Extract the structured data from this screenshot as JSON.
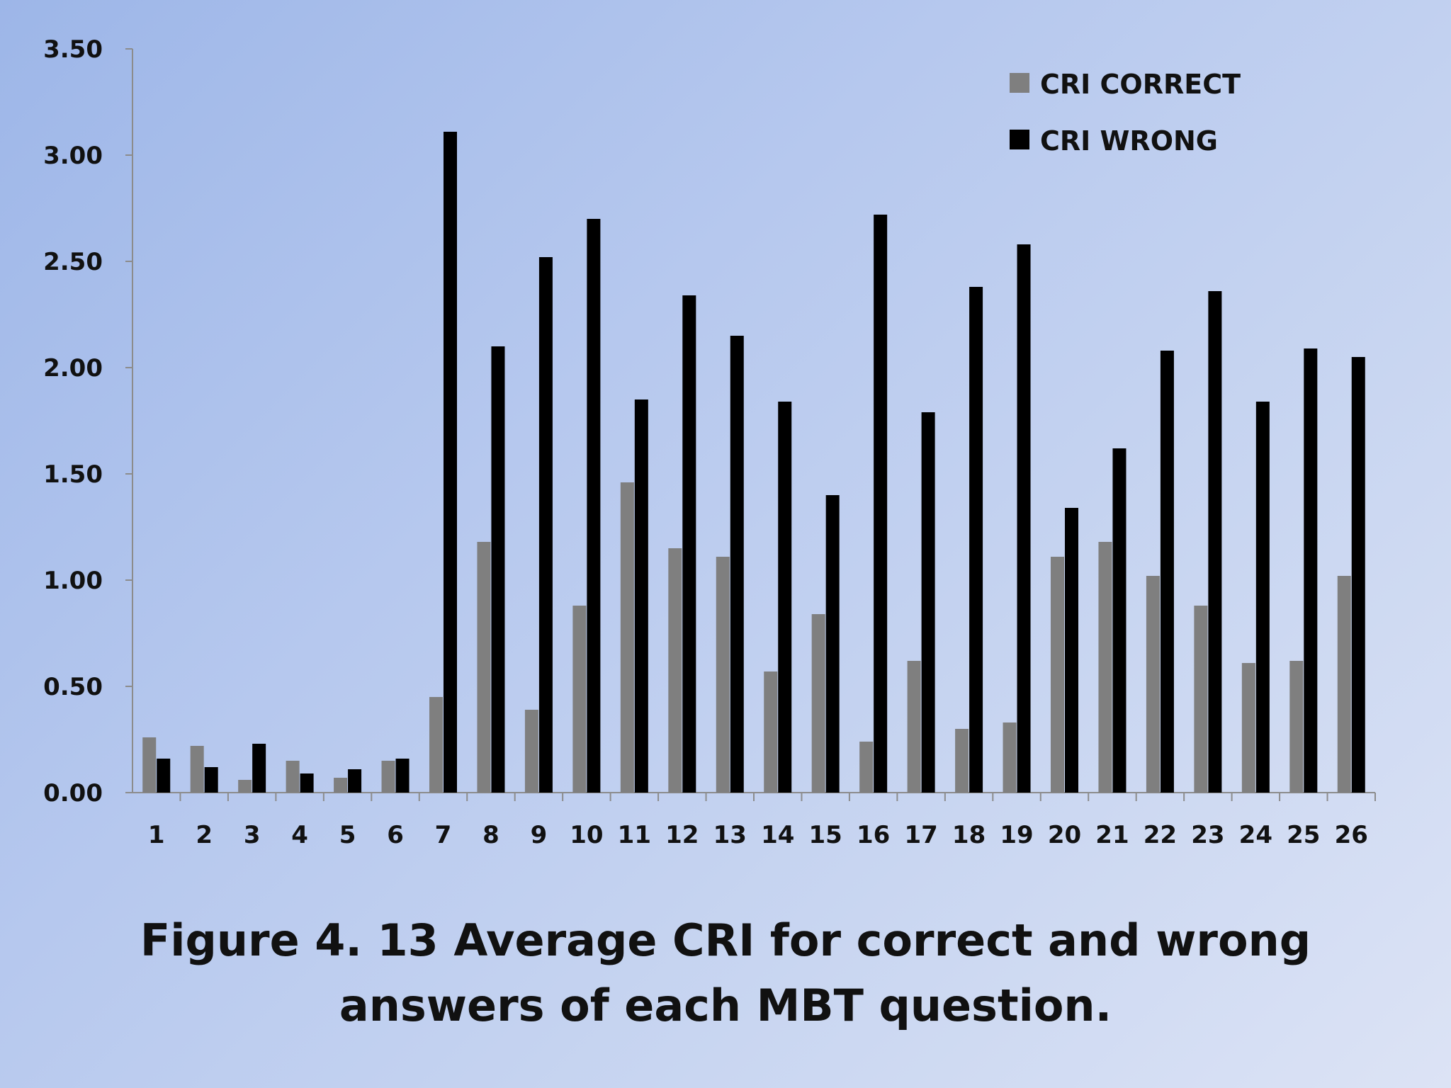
{
  "chart_data": {
    "type": "bar",
    "caption_line1": "Figure 4. 13 Average CRI for correct and wrong",
    "caption_line2": "answers of each MBT question.",
    "xlabel": "",
    "ylabel": "",
    "ylim": [
      0,
      3.5
    ],
    "yticks": [
      "0.00",
      "0.50",
      "1.00",
      "1.50",
      "2.00",
      "2.50",
      "3.00",
      "3.50"
    ],
    "categories": [
      "1",
      "2",
      "3",
      "4",
      "5",
      "6",
      "7",
      "8",
      "9",
      "10",
      "11",
      "12",
      "13",
      "14",
      "15",
      "16",
      "17",
      "18",
      "19",
      "20",
      "21",
      "22",
      "23",
      "24",
      "25",
      "26"
    ],
    "series": [
      {
        "name": "CRI CORRECT",
        "color": "#7f7f7f",
        "values": [
          0.26,
          0.22,
          0.06,
          0.15,
          0.07,
          0.15,
          0.45,
          1.18,
          0.39,
          0.88,
          1.46,
          1.15,
          1.11,
          0.57,
          0.84,
          0.24,
          0.62,
          0.3,
          0.33,
          1.11,
          1.18,
          1.02,
          0.88,
          0.61,
          0.62,
          1.02
        ]
      },
      {
        "name": "CRI WRONG",
        "color": "#000000",
        "values": [
          0.16,
          0.12,
          0.23,
          0.09,
          0.11,
          0.16,
          3.11,
          2.1,
          2.52,
          2.7,
          1.85,
          2.34,
          2.15,
          1.84,
          1.4,
          2.72,
          1.79,
          2.38,
          2.58,
          1.34,
          1.62,
          2.08,
          2.36,
          1.84,
          2.09,
          2.05
        ]
      }
    ],
    "legend_position": "top-right",
    "grid": false
  }
}
